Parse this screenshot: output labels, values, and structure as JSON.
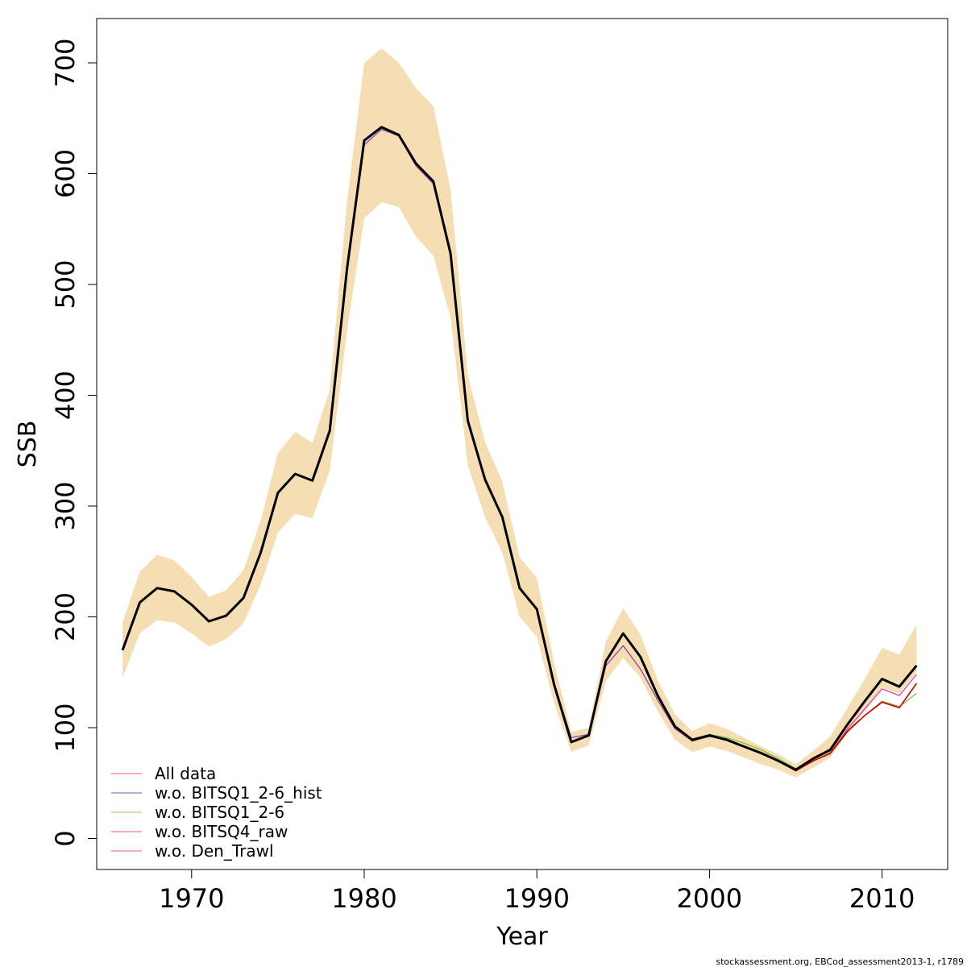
{
  "chart_data": {
    "type": "line",
    "xlabel": "Year",
    "ylabel": "SSB",
    "xlim": [
      1964.5,
      2013.8
    ],
    "ylim": [
      -28,
      740
    ],
    "x_ticks": [
      1970,
      1980,
      1990,
      2000,
      2010
    ],
    "y_ticks": [
      0,
      100,
      200,
      300,
      400,
      500,
      600,
      700
    ],
    "grid": false,
    "legend_position": "bottom-left",
    "band_color": "#f5deb3",
    "x": [
      1966,
      1967,
      1968,
      1969,
      1970,
      1971,
      1972,
      1973,
      1974,
      1975,
      1976,
      1977,
      1978,
      1979,
      1980,
      1981,
      1982,
      1983,
      1984,
      1985,
      1986,
      1987,
      1988,
      1989,
      1990,
      1991,
      1992,
      1993,
      1994,
      1995,
      1996,
      1997,
      1998,
      1999,
      2000,
      2001,
      2002,
      2003,
      2004,
      2005,
      2006,
      2007,
      2008,
      2009,
      2010,
      2011,
      2012
    ],
    "band_upper": [
      195,
      241,
      256,
      251,
      236,
      218,
      224,
      242,
      287,
      348,
      367,
      357,
      405,
      575,
      700,
      713,
      700,
      677,
      661,
      586,
      418,
      358,
      322,
      254,
      235,
      159,
      96,
      100,
      178,
      208,
      184,
      143,
      112,
      97,
      104,
      99,
      91,
      83,
      76,
      67,
      79,
      92,
      118,
      144,
      172,
      166,
      193
    ],
    "band_lower": [
      145,
      185,
      197,
      195,
      185,
      173,
      180,
      194,
      229,
      276,
      293,
      289,
      332,
      458,
      560,
      574,
      570,
      543,
      526,
      470,
      337,
      290,
      258,
      200,
      182,
      122,
      78,
      84,
      142,
      163,
      145,
      115,
      89,
      78,
      83,
      79,
      73,
      67,
      62,
      55,
      64,
      73,
      95,
      115,
      136,
      131,
      150
    ],
    "series": [
      {
        "name": "All data",
        "color": "#000000",
        "width": 3,
        "values": [
          170,
          213,
          226,
          223,
          211,
          196,
          201,
          217,
          258,
          312,
          329,
          323,
          368,
          514,
          630,
          642,
          635,
          609,
          593,
          528,
          377,
          324,
          290,
          226,
          207,
          139,
          87,
          93,
          160,
          185,
          164,
          129,
          101,
          89,
          93,
          89,
          83,
          77,
          70,
          62,
          72,
          80,
          103,
          124,
          144,
          137,
          156
        ]
      },
      {
        "name": "w.o. BITSQ1_2-6_hist",
        "color": "#8e44ad",
        "width": 1.3,
        "values": [
          170,
          213,
          226,
          223,
          211,
          196,
          201,
          217,
          258,
          312,
          329,
          323,
          368,
          512,
          626,
          640,
          634,
          607,
          591,
          527,
          377,
          324,
          290,
          225,
          207,
          139,
          91,
          94,
          156,
          174,
          153,
          125,
          99,
          88,
          92,
          90,
          83,
          77,
          70,
          62,
          72,
          79,
          103,
          124,
          144,
          137,
          156
        ]
      },
      {
        "name": "w.o. BITSQ1_2-6",
        "color": "#7bc043",
        "width": 1.3,
        "values": [
          170,
          213,
          226,
          223,
          211,
          196,
          201,
          217,
          258,
          312,
          329,
          323,
          368,
          514,
          630,
          642,
          635,
          609,
          593,
          528,
          377,
          324,
          290,
          226,
          207,
          139,
          87,
          93,
          160,
          185,
          164,
          129,
          102,
          89,
          94,
          91,
          86,
          80,
          72,
          63,
          70,
          76,
          96,
          111,
          124,
          119,
          131
        ]
      },
      {
        "name": "w.o. BITSQ4_raw",
        "color": "#e040b0",
        "width": 1.3,
        "values": [
          170,
          213,
          226,
          223,
          211,
          196,
          201,
          217,
          258,
          312,
          329,
          323,
          368,
          514,
          630,
          642,
          635,
          609,
          593,
          528,
          377,
          324,
          290,
          226,
          207,
          139,
          87,
          93,
          160,
          185,
          164,
          129,
          101,
          88,
          93,
          89,
          83,
          77,
          70,
          61,
          70,
          77,
          99,
          117,
          135,
          129,
          148
        ]
      },
      {
        "name": "w.o. Den_Trawl",
        "color": "#cc0000",
        "width": 1.6,
        "values": [
          170,
          213,
          226,
          223,
          211,
          196,
          201,
          217,
          258,
          312,
          329,
          323,
          368,
          514,
          630,
          642,
          635,
          609,
          593,
          528,
          377,
          324,
          290,
          226,
          207,
          139,
          87,
          93,
          160,
          185,
          164,
          129,
          101,
          88,
          93,
          89,
          83,
          77,
          70,
          61,
          70,
          77,
          97,
          111,
          123,
          118,
          140
        ]
      }
    ],
    "legend": [
      {
        "label": "All data",
        "color": "#f08080"
      },
      {
        "label": "w.o. BITSQ1_2-6_hist",
        "color": "#a070c0"
      },
      {
        "label": "w.o. BITSQ1_2-6",
        "color": "#a8d870"
      },
      {
        "label": "w.o. BITSQ4_raw",
        "color": "#f070c0"
      },
      {
        "label": "w.o. Den_Trawl",
        "color": "#f08080"
      }
    ]
  },
  "footnote": "stockassessment.org, EBCod_assessment2013-1, r1789"
}
